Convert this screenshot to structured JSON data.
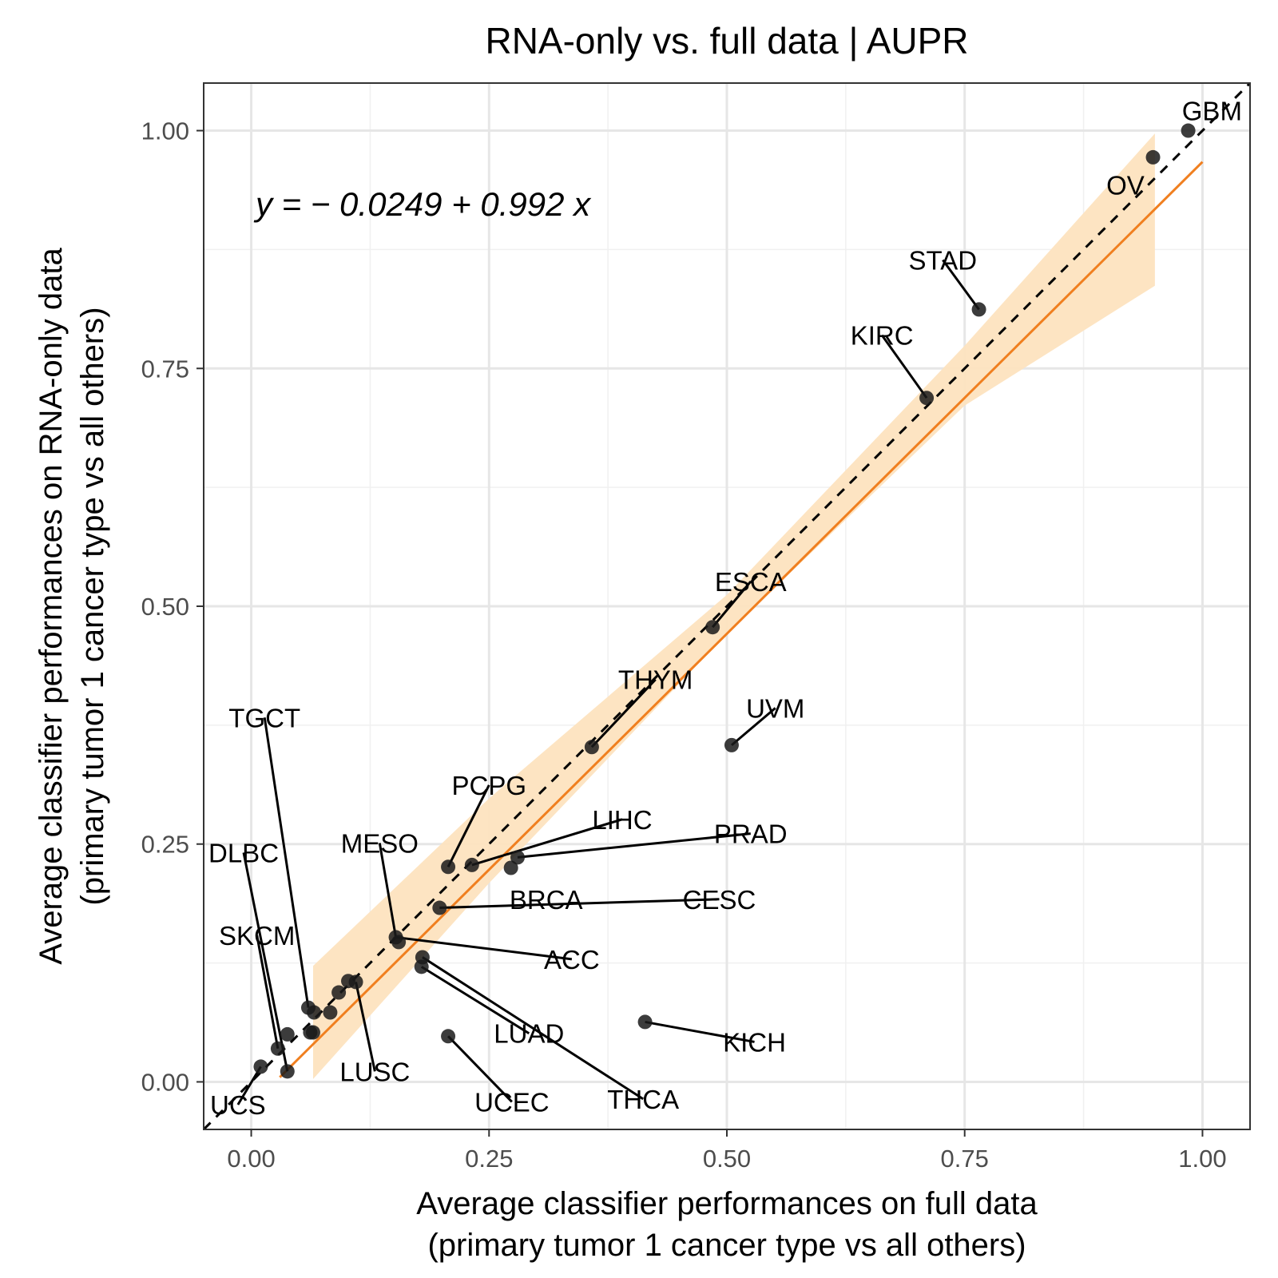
{
  "chart_data": {
    "type": "scatter",
    "title": "RNA-only vs. full data | AUPR",
    "xlabel": [
      "Average classifier performances on full data",
      "(primary tumor 1 cancer type vs all others)"
    ],
    "ylabel": [
      "Average classifier performances on RNA-only data",
      "(primary tumor 1 cancer type vs all others)"
    ],
    "xlim": [
      -0.05,
      1.05
    ],
    "ylim": [
      -0.05,
      1.05
    ],
    "x_ticks": [
      0,
      0.25,
      0.5,
      0.75,
      1
    ],
    "y_ticks": [
      0,
      0.25,
      0.5,
      0.75,
      1
    ],
    "x_tick_labels": [
      "0.00",
      "0.25",
      "0.50",
      "0.75",
      "1.00"
    ],
    "y_tick_labels": [
      "0.00",
      "0.25",
      "0.50",
      "0.75",
      "1.00"
    ],
    "grid": true,
    "legend": "none",
    "equation": "y = − 0.0249 + 0.992 x",
    "fit": {
      "intercept": -0.0249,
      "slope": 0.992,
      "x_range": [
        0.03,
        1.0
      ],
      "color": "#f07f1f"
    },
    "confidence_band": {
      "color": "#fde3bf",
      "x": [
        0.065,
        0.25,
        0.5,
        0.75,
        0.95
      ],
      "lower": [
        0.003,
        0.209,
        0.471,
        0.711,
        0.837
      ],
      "upper": [
        0.122,
        0.298,
        0.512,
        0.774,
        0.997
      ]
    },
    "reference_line": {
      "slope": 1,
      "intercept": 0,
      "style": "dashed",
      "color": "#000000"
    },
    "point_color": "#1a1a1a",
    "points": [
      {
        "x": 0.985,
        "y": 1.0
      },
      {
        "x": 0.948,
        "y": 0.972
      },
      {
        "x": 0.765,
        "y": 0.812
      },
      {
        "x": 0.71,
        "y": 0.719
      },
      {
        "x": 0.485,
        "y": 0.478
      },
      {
        "x": 0.358,
        "y": 0.352
      },
      {
        "x": 0.505,
        "y": 0.354
      },
      {
        "x": 0.207,
        "y": 0.226
      },
      {
        "x": 0.28,
        "y": 0.236
      },
      {
        "x": 0.232,
        "y": 0.228
      },
      {
        "x": 0.273,
        "y": 0.225
      },
      {
        "x": 0.198,
        "y": 0.183
      },
      {
        "x": 0.152,
        "y": 0.152
      },
      {
        "x": 0.155,
        "y": 0.147
      },
      {
        "x": 0.18,
        "y": 0.131
      },
      {
        "x": 0.179,
        "y": 0.121
      },
      {
        "x": 0.414,
        "y": 0.063
      },
      {
        "x": 0.207,
        "y": 0.048
      },
      {
        "x": 0.11,
        "y": 0.105
      },
      {
        "x": 0.102,
        "y": 0.106
      },
      {
        "x": 0.092,
        "y": 0.094
      },
      {
        "x": 0.083,
        "y": 0.073
      },
      {
        "x": 0.066,
        "y": 0.073
      },
      {
        "x": 0.06,
        "y": 0.078
      },
      {
        "x": 0.062,
        "y": 0.052
      },
      {
        "x": 0.065,
        "y": 0.052
      },
      {
        "x": 0.038,
        "y": 0.05
      },
      {
        "x": 0.028,
        "y": 0.035
      },
      {
        "x": 0.01,
        "y": 0.016
      },
      {
        "x": 0.038,
        "y": 0.011
      }
    ],
    "labels": [
      {
        "text": "GBM",
        "x": 0.985,
        "y": 1.0,
        "lx": 1.01,
        "ly": 1.021,
        "line": false
      },
      {
        "text": "OV",
        "x": 0.948,
        "y": 0.972,
        "lx": 0.919,
        "ly": 0.943,
        "line": false
      },
      {
        "text": "STAD",
        "x": 0.765,
        "y": 0.812,
        "lx": 0.727,
        "ly": 0.864,
        "line": true
      },
      {
        "text": "KIRC",
        "x": 0.71,
        "y": 0.719,
        "lx": 0.663,
        "ly": 0.785,
        "line": true
      },
      {
        "text": "ESCA",
        "x": 0.485,
        "y": 0.478,
        "lx": 0.525,
        "ly": 0.526,
        "line": true
      },
      {
        "text": "THYM",
        "x": 0.358,
        "y": 0.352,
        "lx": 0.425,
        "ly": 0.423,
        "line": true
      },
      {
        "text": "UVM",
        "x": 0.505,
        "y": 0.354,
        "lx": 0.551,
        "ly": 0.393,
        "line": true
      },
      {
        "text": "PCPG",
        "x": 0.207,
        "y": 0.226,
        "lx": 0.25,
        "ly": 0.312,
        "line": true
      },
      {
        "text": "LIHC",
        "x": 0.232,
        "y": 0.228,
        "lx": 0.39,
        "ly": 0.276,
        "line": true
      },
      {
        "text": "PRAD",
        "x": 0.28,
        "y": 0.236,
        "lx": 0.525,
        "ly": 0.261,
        "line": true
      },
      {
        "text": "MESO",
        "x": 0.152,
        "y": 0.152,
        "lx": 0.135,
        "ly": 0.251,
        "line": true
      },
      {
        "text": "BRCA",
        "x": 0.273,
        "y": 0.225,
        "lx": 0.31,
        "ly": 0.192,
        "line": false
      },
      {
        "text": "CESC",
        "x": 0.198,
        "y": 0.183,
        "lx": 0.492,
        "ly": 0.192,
        "line": true
      },
      {
        "text": "ACC",
        "x": 0.152,
        "y": 0.152,
        "lx": 0.337,
        "ly": 0.129,
        "line": true
      },
      {
        "text": "LUAD",
        "x": 0.179,
        "y": 0.121,
        "lx": 0.292,
        "ly": 0.051,
        "line": true
      },
      {
        "text": "THCA",
        "x": 0.18,
        "y": 0.131,
        "lx": 0.412,
        "ly": -0.018,
        "line": true
      },
      {
        "text": "KICH",
        "x": 0.414,
        "y": 0.063,
        "lx": 0.529,
        "ly": 0.042,
        "line": true
      },
      {
        "text": "UCEC",
        "x": 0.207,
        "y": 0.048,
        "lx": 0.274,
        "ly": -0.021,
        "line": true
      },
      {
        "text": "LUSC",
        "x": 0.11,
        "y": 0.105,
        "lx": 0.13,
        "ly": 0.011,
        "line": true
      },
      {
        "text": "TGCT",
        "x": 0.06,
        "y": 0.078,
        "lx": 0.014,
        "ly": 0.383,
        "line": true
      },
      {
        "text": "DLBC",
        "x": 0.038,
        "y": 0.011,
        "lx": -0.008,
        "ly": 0.241,
        "line": true
      },
      {
        "text": "SKCM",
        "x": 0.028,
        "y": 0.035,
        "lx": 0.006,
        "ly": 0.154,
        "line": true
      },
      {
        "text": "UCS",
        "x": 0.01,
        "y": 0.016,
        "lx": -0.014,
        "ly": -0.024,
        "line": true
      }
    ]
  }
}
